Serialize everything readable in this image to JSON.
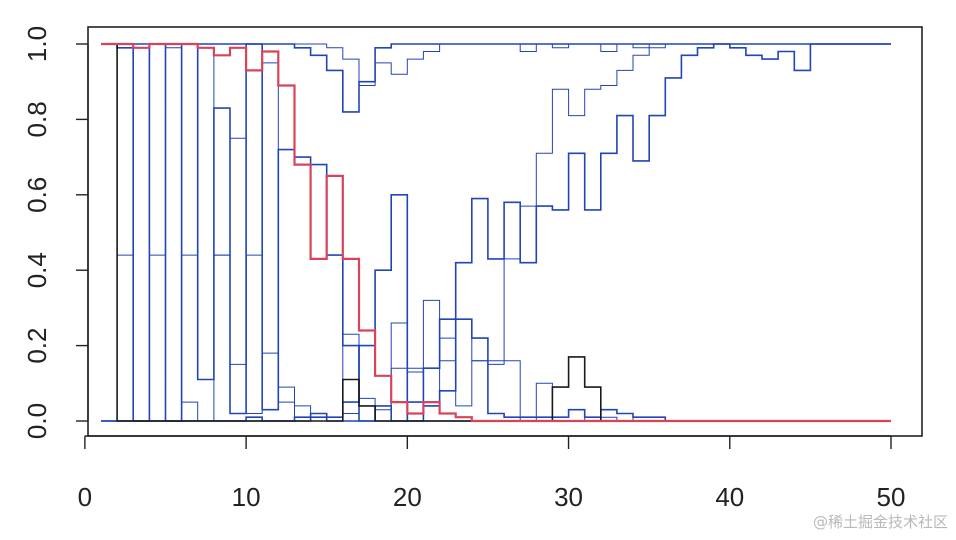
{
  "watermark": "@稀土掘金技术社区",
  "chart_data": {
    "type": "line",
    "title": "",
    "xlabel": "",
    "ylabel": "",
    "xlim": [
      1,
      50
    ],
    "ylim": [
      0,
      1
    ],
    "x_ticks": [
      0,
      10,
      20,
      30,
      40,
      50
    ],
    "y_ticks": [
      0.0,
      0.2,
      0.4,
      0.6,
      0.8,
      1.0
    ],
    "x_tick_labels": [
      "0",
      "10",
      "20",
      "30",
      "40",
      "50"
    ],
    "y_tick_labels": [
      "0.0",
      "0.2",
      "0.4",
      "0.6",
      "0.8",
      "1.0"
    ],
    "grid": false,
    "step": true,
    "series": [
      {
        "color": "#2244bb",
        "width": 1.6,
        "x": [
          1,
          2,
          3,
          4,
          5,
          6,
          7,
          8,
          9,
          10,
          11,
          12,
          13,
          14,
          15,
          16,
          17,
          18,
          19,
          20,
          21,
          22,
          23,
          24,
          25,
          26,
          27,
          28,
          29,
          30,
          31,
          32,
          33,
          34,
          35,
          36,
          37,
          38,
          39,
          40,
          45,
          50
        ],
        "y": [
          1.0,
          1.0,
          1.0,
          1.0,
          1.0,
          1.0,
          1.0,
          1.0,
          1.0,
          1.0,
          1.0,
          1.0,
          0.99,
          0.97,
          0.93,
          0.82,
          0.9,
          0.99,
          1.0,
          1.0,
          1.0,
          1.0,
          1.0,
          1.0,
          1.0,
          1.0,
          1.0,
          1.0,
          1.0,
          1.0,
          1.0,
          1.0,
          1.0,
          1.0,
          1.0,
          1.0,
          1.0,
          1.0,
          1.0,
          1.0,
          1.0,
          1.0
        ]
      },
      {
        "color": "#2244bb",
        "width": 1.0,
        "x": [
          1,
          2,
          3,
          4,
          5,
          6,
          7,
          8,
          9,
          10,
          11,
          12,
          13,
          14,
          15,
          16,
          17,
          18,
          19,
          20,
          21,
          22,
          23,
          24,
          25,
          26,
          27,
          28,
          29,
          30,
          31,
          32,
          33,
          34,
          35,
          36,
          37,
          38,
          39,
          40,
          45,
          50
        ],
        "y": [
          1.0,
          1.0,
          1.0,
          1.0,
          1.0,
          1.0,
          1.0,
          1.0,
          1.0,
          1.0,
          1.0,
          1.0,
          1.0,
          1.0,
          0.99,
          0.96,
          0.89,
          0.95,
          0.92,
          0.96,
          0.98,
          1.0,
          1.0,
          1.0,
          1.0,
          1.0,
          0.98,
          1.0,
          0.99,
          1.0,
          1.0,
          0.98,
          1.0,
          0.99,
          1.0,
          1.0,
          1.0,
          1.0,
          1.0,
          1.0,
          1.0,
          1.0
        ]
      },
      {
        "color": "#2244bb",
        "width": 1.6,
        "x": [
          1,
          2,
          3,
          4,
          5,
          6,
          7,
          8,
          9,
          10,
          11,
          12,
          13,
          14,
          15,
          16,
          17,
          18,
          19,
          20,
          21,
          22,
          23,
          24,
          25,
          26,
          27,
          28,
          29,
          30,
          31,
          32,
          33,
          34,
          35,
          36,
          37,
          38,
          39,
          40,
          41,
          42,
          43,
          44,
          45,
          46,
          50
        ],
        "y": [
          0.0,
          0.0,
          0.0,
          0.0,
          0.0,
          0.0,
          0.0,
          0.0,
          0.0,
          0.0,
          0.0,
          0.0,
          0.01,
          0.01,
          0.01,
          0.05,
          0.2,
          0.4,
          0.6,
          0.0,
          0.14,
          0.27,
          0.42,
          0.59,
          0.43,
          0.58,
          0.42,
          0.57,
          0.56,
          0.71,
          0.56,
          0.71,
          0.81,
          0.69,
          0.81,
          0.91,
          0.97,
          0.99,
          1.0,
          0.99,
          0.97,
          0.96,
          0.98,
          0.93,
          1.0,
          1.0,
          1.0
        ]
      },
      {
        "color": "#2244bb",
        "width": 1.0,
        "x": [
          1,
          2,
          3,
          4,
          5,
          6,
          7,
          8,
          9,
          10,
          11,
          12,
          13,
          14,
          15,
          16,
          17,
          18,
          19,
          20,
          21,
          22,
          23,
          24,
          25,
          26,
          27,
          28,
          29,
          30,
          31,
          32,
          33,
          34,
          35,
          36,
          37,
          38,
          39,
          40,
          41,
          42,
          43,
          44,
          45,
          46,
          50
        ],
        "y": [
          0.0,
          0.0,
          0.0,
          0.0,
          0.0,
          0.0,
          0.0,
          0.0,
          0.0,
          0.0,
          0.0,
          0.0,
          0.01,
          0.01,
          0.0,
          0.02,
          0.06,
          0.03,
          0.26,
          0.14,
          0.04,
          0.22,
          0.27,
          0.16,
          0.15,
          0.43,
          0.57,
          0.71,
          0.88,
          0.81,
          0.88,
          0.89,
          0.93,
          0.97,
          0.99,
          1.0,
          1.0,
          1.0,
          1.0,
          1.0,
          1.0,
          1.0,
          1.0,
          1.0,
          1.0,
          1.0,
          1.0
        ]
      },
      {
        "color": "#2244bb",
        "width": 1.0,
        "x": [
          1,
          2,
          3,
          4,
          5,
          6,
          7,
          8,
          9,
          10,
          11,
          12,
          13,
          14,
          15,
          16,
          17,
          18,
          19,
          20,
          21,
          22,
          23,
          24,
          25,
          26,
          27,
          28,
          29,
          30,
          31,
          32,
          33,
          34,
          35,
          36,
          37,
          38,
          39,
          40,
          45,
          50
        ],
        "y": [
          0.0,
          0.0,
          0.0,
          0.0,
          0.0,
          0.0,
          0.0,
          0.0,
          0.0,
          0.0,
          0.0,
          0.0,
          0.0,
          0.0,
          0.01,
          0.23,
          0.0,
          0.0,
          0.14,
          0.13,
          0.32,
          0.16,
          0.04,
          0.16,
          0.16,
          0.16,
          0.0,
          0.1,
          0.0,
          0.0,
          0.01,
          0.01,
          0.0,
          0.01,
          0.01,
          0.0,
          0.0,
          0.0,
          0.0,
          0.0,
          0.0,
          0.0
        ]
      },
      {
        "color": "#2244bb",
        "width": 1.6,
        "x": [
          1,
          2,
          3,
          4,
          5,
          6,
          7,
          8,
          9,
          10,
          11,
          12,
          13,
          14,
          15,
          16,
          17,
          18,
          19,
          20,
          21,
          22,
          23,
          24,
          25,
          26,
          27,
          28,
          29,
          30,
          31,
          32,
          33,
          34,
          35,
          36,
          37,
          38,
          39,
          40,
          45,
          50
        ],
        "y": [
          0.0,
          0.0,
          0.0,
          0.0,
          0.0,
          0.0,
          0.0,
          0.0,
          0.0,
          0.01,
          0.0,
          0.0,
          0.0,
          0.02,
          0.0,
          0.0,
          0.0,
          0.04,
          0.0,
          0.05,
          0.04,
          0.08,
          0.27,
          0.22,
          0.02,
          0.01,
          0.01,
          0.01,
          0.01,
          0.03,
          0.01,
          0.03,
          0.02,
          0.01,
          0.01,
          0.0,
          0.0,
          0.0,
          0.0,
          0.0,
          0.0,
          0.0
        ]
      },
      {
        "color": "#2244bb",
        "width": 1.6,
        "x": [
          1,
          2,
          3,
          4,
          5,
          6,
          7,
          8,
          9,
          10,
          11,
          12,
          13,
          14,
          15,
          16,
          17,
          18,
          19,
          20,
          21,
          22,
          23,
          24,
          25,
          26,
          27,
          28,
          29,
          30,
          31,
          32,
          33,
          34,
          35,
          36,
          37,
          38,
          39,
          40,
          45,
          50
        ],
        "y": [
          1.0,
          0.99,
          0.0,
          1.0,
          0.0,
          1.0,
          0.11,
          0.83,
          0.02,
          1.0,
          0.03,
          0.72,
          0.7,
          0.68,
          0.44,
          0.2,
          0.0,
          0.0,
          0.0,
          0.0,
          0.0,
          0.0,
          0.0,
          0.0,
          0.0,
          0.0,
          0.0,
          0.0,
          0.0,
          0.0,
          0.0,
          0.0,
          0.0,
          0.0,
          0.0,
          0.0,
          0.0,
          0.0,
          0.0,
          0.0,
          0.0,
          0.0
        ]
      },
      {
        "color": "#2244bb",
        "width": 1.0,
        "x": [
          1,
          2,
          3,
          4,
          5,
          6,
          7,
          8,
          9,
          10,
          11,
          12,
          13,
          14,
          15,
          16,
          17,
          18,
          19,
          20,
          21,
          22,
          23,
          24,
          25,
          26,
          27,
          28,
          29,
          30,
          31,
          32,
          33,
          34,
          35,
          36,
          37,
          38,
          39,
          40,
          45,
          50
        ],
        "y": [
          1.0,
          0.44,
          0.99,
          0.44,
          0.99,
          0.44,
          0.99,
          0.44,
          0.75,
          0.02,
          0.18,
          0.09,
          0.04,
          0.0,
          0.0,
          0.0,
          0.0,
          0.0,
          0.0,
          0.0,
          0.0,
          0.0,
          0.0,
          0.0,
          0.0,
          0.0,
          0.0,
          0.0,
          0.0,
          0.0,
          0.0,
          0.0,
          0.0,
          0.0,
          0.0,
          0.0,
          0.0,
          0.0,
          0.0,
          0.0,
          0.0,
          0.0
        ]
      },
      {
        "color": "#2244bb",
        "width": 1.0,
        "x": [
          1,
          2,
          3,
          4,
          5,
          6,
          7,
          8,
          9,
          10,
          11,
          12,
          13,
          14,
          15,
          16,
          17,
          18,
          19,
          20,
          21,
          22,
          23,
          24,
          25,
          26,
          27,
          28,
          29,
          30,
          31,
          32,
          33,
          34,
          35,
          36,
          37,
          38,
          39,
          40,
          45,
          50
        ],
        "y": [
          0.0,
          0.0,
          0.0,
          0.0,
          0.0,
          0.05,
          0.0,
          0.44,
          0.15,
          0.44,
          0.95,
          0.05,
          0.0,
          0.0,
          0.0,
          0.0,
          0.0,
          0.0,
          0.0,
          0.0,
          0.0,
          0.0,
          0.0,
          0.0,
          0.0,
          0.0,
          0.0,
          0.0,
          0.0,
          0.0,
          0.0,
          0.0,
          0.0,
          0.0,
          0.0,
          0.0,
          0.0,
          0.0,
          0.0,
          0.0,
          0.0,
          0.0
        ]
      },
      {
        "color": "#1a1a1a",
        "width": 1.6,
        "x": [
          1,
          2,
          3,
          4,
          5,
          6,
          7,
          8,
          9,
          10,
          11,
          12,
          13,
          14,
          15,
          16,
          17,
          18,
          19,
          20,
          21,
          22,
          23,
          24,
          25,
          26,
          27,
          28,
          29,
          30,
          31,
          32,
          33,
          34,
          35,
          40,
          45,
          50
        ],
        "y": [
          1.0,
          0.0,
          0.0,
          0.0,
          0.0,
          0.0,
          0.0,
          0.0,
          0.0,
          0.0,
          0.0,
          0.0,
          0.0,
          0.0,
          0.0,
          0.11,
          0.04,
          0.0,
          0.0,
          0.0,
          0.0,
          0.0,
          0.0,
          0.0,
          0.0,
          0.0,
          0.0,
          0.0,
          0.09,
          0.17,
          0.09,
          0.0,
          0.0,
          0.0,
          0.0,
          0.0,
          0.0,
          0.0
        ]
      },
      {
        "color": "#d9435a",
        "width": 2.2,
        "x": [
          1,
          2,
          3,
          4,
          5,
          6,
          7,
          8,
          9,
          10,
          11,
          12,
          13,
          14,
          15,
          16,
          17,
          18,
          19,
          20,
          21,
          22,
          23,
          24,
          25,
          26,
          27,
          28,
          29,
          30,
          35,
          40,
          45,
          50
        ],
        "y": [
          1.0,
          1.0,
          0.99,
          1.0,
          1.0,
          1.0,
          0.99,
          0.97,
          0.99,
          0.93,
          0.98,
          0.89,
          0.68,
          0.43,
          0.65,
          0.43,
          0.24,
          0.12,
          0.05,
          0.02,
          0.05,
          0.02,
          0.01,
          0.0,
          0.0,
          0.0,
          0.0,
          0.0,
          0.0,
          0.0,
          0.0,
          0.0,
          0.0,
          0.0
        ]
      }
    ]
  }
}
